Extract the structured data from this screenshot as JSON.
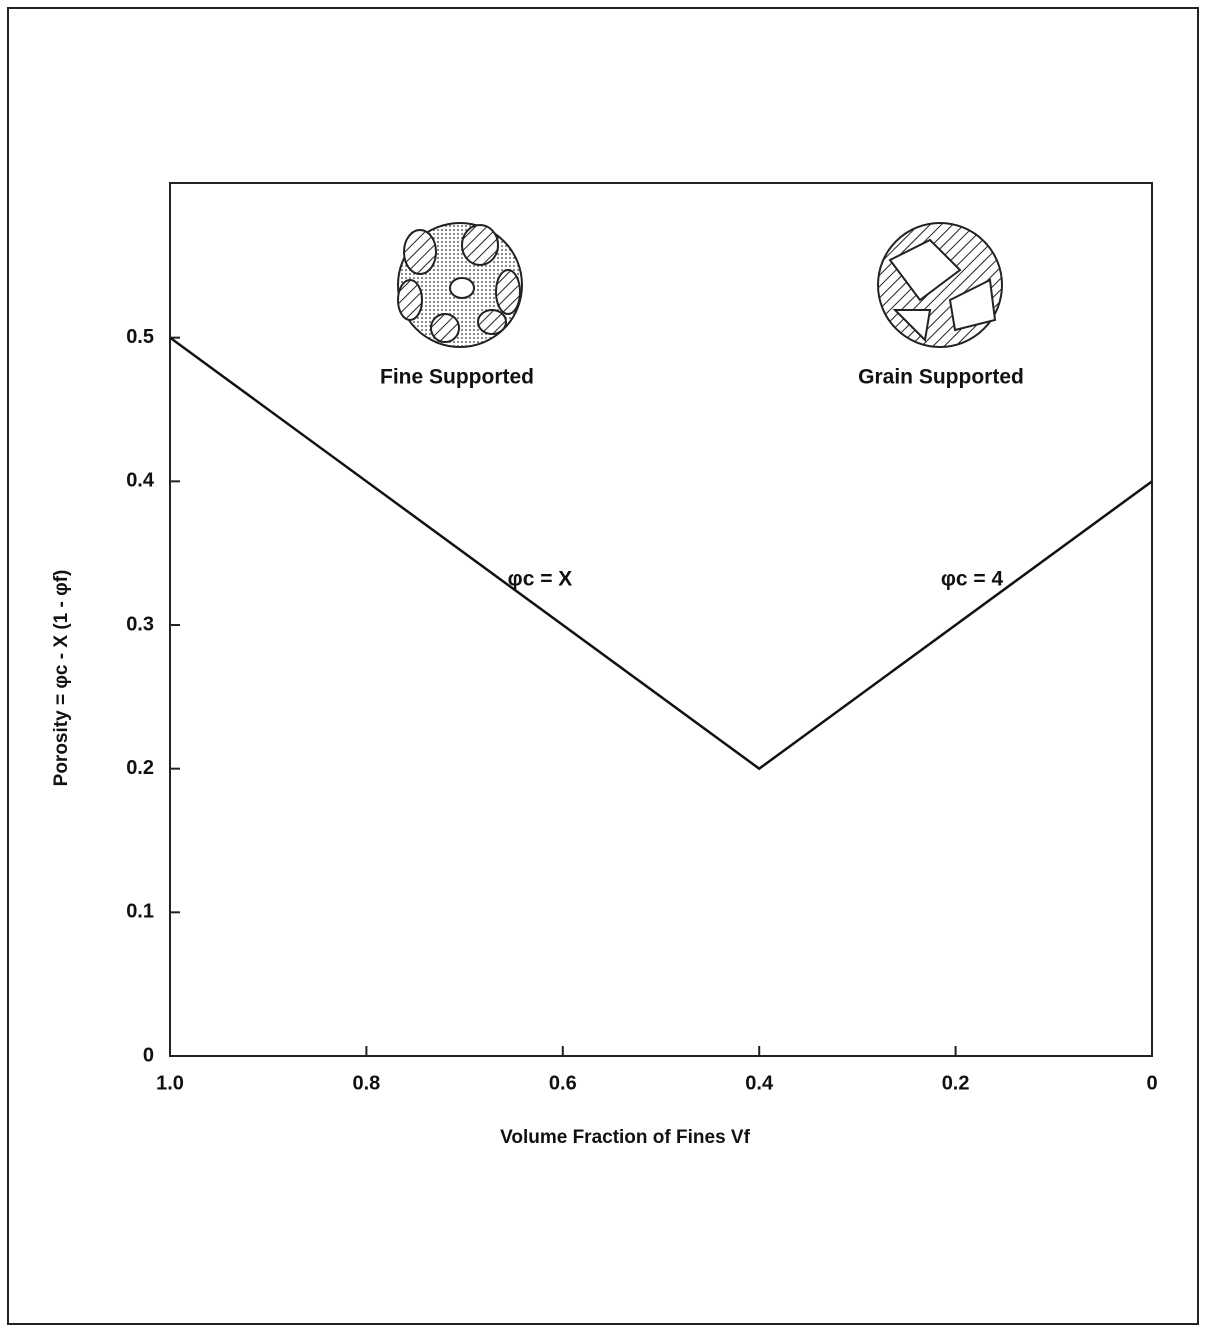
{
  "chart_data": {
    "type": "line",
    "xlabel": "Volume Fraction of Fines Vf",
    "ylabel": "Porosity = φc - X (1 - φf)",
    "x": [
      1.0,
      0.4,
      0
    ],
    "series": [
      {
        "values": [
          0.5,
          0.2,
          0.4
        ],
        "color": "#111111"
      }
    ],
    "xlim": [
      1.0,
      0
    ],
    "ylim": [
      0,
      0.6
    ],
    "xticks": [
      {
        "value": 1.0,
        "label": "1.0"
      },
      0.8,
      0.6,
      0.4,
      0.2,
      0
    ],
    "yticks": [
      0,
      0.1,
      0.2,
      0.3,
      0.4,
      0.5
    ],
    "annotations": [
      "Fine Supported",
      "Grain Supported",
      "φc = X",
      "φc = 4"
    ]
  }
}
